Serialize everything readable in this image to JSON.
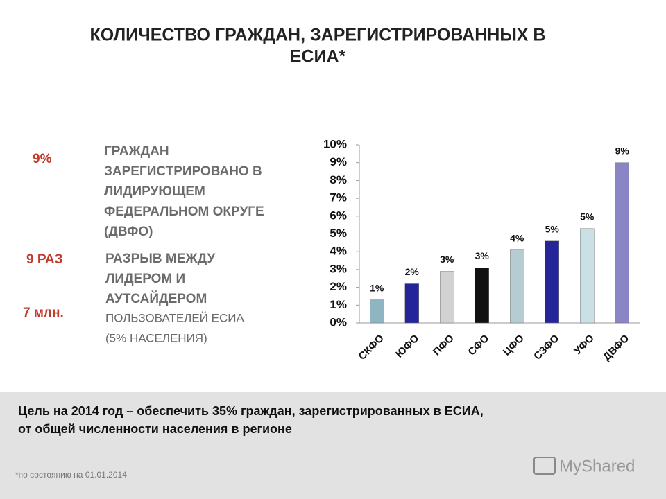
{
  "slide": {
    "title_lines": [
      "КОЛИЧЕСТВО ГРАЖДАН, ЗАРЕГИСТРИРОВАННЫХ В",
      "ЕСИА*"
    ],
    "facts": [
      {
        "value": "9%",
        "lines": [
          "ГРАЖДАН",
          "ЗАРЕГИСТРИРОВАНО В",
          "ЛИДИРУЮЩЕМ",
          "ФЕДЕРАЛЬНОМ ОКРУГЕ",
          "(ДВФО)"
        ]
      },
      {
        "value": "9 РАЗ",
        "lines": [
          "РАЗРЫВ МЕЖДУ",
          "ЛИДЕРОМ И",
          "АУТСАЙДЕРОМ"
        ]
      },
      {
        "value": "7 млн.",
        "lines": [
          "ПОЛЬЗОВАТЕЛЕЙ ЕСИА",
          "(5% НАСЕЛЕНИЯ)"
        ]
      }
    ],
    "goal_lines": [
      "Цель на 2014 год – обеспечить 35% граждан, зарегистрированных в ЕСИА,",
      "от общей численности населения в регионе"
    ],
    "footnote": "*по состоянию на 01.01.2014",
    "watermark": "MyShared"
  },
  "chart_data": {
    "type": "bar",
    "categories": [
      "СКФО",
      "ЮФО",
      "ПФО",
      "СФО",
      "ЦФО",
      "СЗФО",
      "УФО",
      "ДВФО"
    ],
    "values": [
      1.3,
      2.2,
      2.9,
      3.1,
      4.1,
      4.6,
      5.3,
      9.0
    ],
    "value_labels": [
      "1%",
      "2%",
      "3%",
      "3%",
      "4%",
      "5%",
      "5%",
      "9%"
    ],
    "colors": [
      "#8fb5c3",
      "#25259a",
      "#d2d2d2",
      "#111111",
      "#b5ccd1",
      "#25259a",
      "#c9e0e4",
      "#8a86c6"
    ],
    "ylim": [
      0,
      10
    ],
    "yticks": [
      {
        "value": 0,
        "label": "0%"
      },
      {
        "value": 1,
        "label": "1%"
      },
      {
        "value": 2,
        "label": "2%"
      },
      {
        "value": 3,
        "label": "3%"
      },
      {
        "value": 4,
        "label": "4%"
      },
      {
        "value": 5,
        "label": "5%"
      },
      {
        "value": 6,
        "label": "6%"
      },
      {
        "value": 7,
        "label": "7%"
      },
      {
        "value": 8,
        "label": "8%"
      },
      {
        "value": 9,
        "label": "9%"
      },
      {
        "value": 10,
        "label": "10%"
      }
    ],
    "grid": false
  }
}
